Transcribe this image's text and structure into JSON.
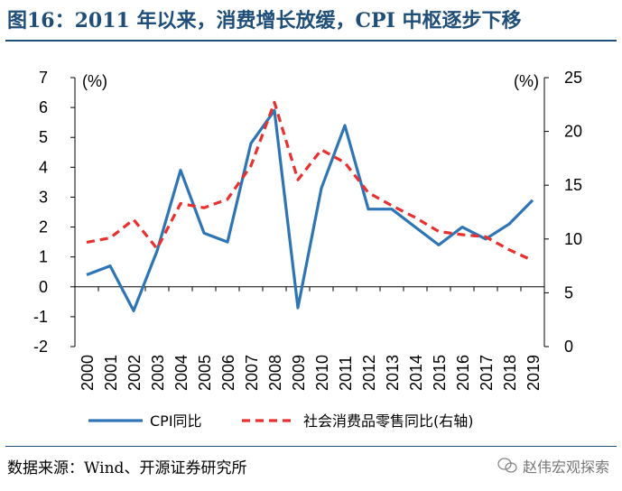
{
  "title": "图16：2011 年以来，消费增长放缓，CPI 中枢逐步下移",
  "source": "数据来源：Wind、开源证券研究所",
  "watermark": "赵伟宏观探索",
  "colors": {
    "cpi": "#2e75b6",
    "retail": "#e8312f",
    "title": "#1f4e79"
  },
  "chart_data": {
    "type": "line",
    "x": [
      "2000",
      "2001",
      "2002",
      "2003",
      "2004",
      "2005",
      "2006",
      "2007",
      "2008",
      "2009",
      "2010",
      "2011",
      "2012",
      "2013",
      "2014",
      "2015",
      "2016",
      "2017",
      "2018",
      "2019"
    ],
    "left_axis": {
      "unit": "(%)",
      "ylim": [
        -2,
        7
      ],
      "ticks": [
        -2,
        -1,
        0,
        1,
        2,
        3,
        4,
        5,
        6,
        7
      ]
    },
    "right_axis": {
      "unit": "(%)",
      "ylim": [
        0,
        25
      ],
      "ticks": [
        0,
        5,
        10,
        15,
        20,
        25
      ]
    },
    "series": [
      {
        "name": "CPI同比",
        "axis": "left",
        "style": "solid",
        "values": [
          0.4,
          0.7,
          -0.8,
          1.2,
          3.9,
          1.8,
          1.5,
          4.8,
          5.9,
          -0.7,
          3.3,
          5.4,
          2.6,
          2.6,
          2.0,
          1.4,
          2.0,
          1.6,
          2.1,
          2.9
        ]
      },
      {
        "name": "社会消费品零售同比(右轴)",
        "axis": "right",
        "style": "dashed",
        "values": [
          9.7,
          10.1,
          11.8,
          9.1,
          13.3,
          12.9,
          13.7,
          16.8,
          22.7,
          15.5,
          18.3,
          17.1,
          14.3,
          13.1,
          12.0,
          10.7,
          10.4,
          10.2,
          9.0,
          8.0
        ]
      }
    ],
    "grid": false,
    "legend": "bottom"
  }
}
